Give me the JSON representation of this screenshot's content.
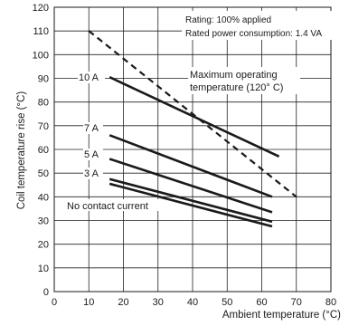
{
  "chart_data": {
    "type": "line",
    "xlabel": "Ambient temperature (°C)",
    "ylabel": "Coil temperature rise (°C)",
    "xlim": [
      0,
      80
    ],
    "ylim": [
      0,
      120
    ],
    "xticks": [
      0,
      10,
      20,
      30,
      40,
      50,
      60,
      70,
      80
    ],
    "yticks": [
      0,
      10,
      20,
      30,
      40,
      50,
      60,
      70,
      80,
      90,
      100,
      110,
      120
    ],
    "grid": true,
    "notes": [
      "Rating: 100% applied",
      "Rated power consumption: 1.4 VA"
    ],
    "max_label": [
      "Maximum operating",
      "temperature (120° C)"
    ],
    "series": [
      {
        "name": "10 A",
        "x": [
          16,
          65
        ],
        "y": [
          90.5,
          57
        ],
        "style": "solid"
      },
      {
        "name": "7 A",
        "x": [
          16,
          63
        ],
        "y": [
          66,
          40
        ],
        "style": "solid"
      },
      {
        "name": "5 A",
        "x": [
          16,
          63
        ],
        "y": [
          56,
          33.5
        ],
        "style": "solid"
      },
      {
        "name": "3 A",
        "x": [
          16,
          63
        ],
        "y": [
          47.5,
          29.5
        ],
        "style": "solid"
      },
      {
        "name": "No contact current",
        "x": [
          16,
          63
        ],
        "y": [
          45.5,
          27.5
        ],
        "style": "solid"
      },
      {
        "name": "Maximum operating temperature (120° C)",
        "x": [
          10,
          70
        ],
        "y": [
          110,
          40
        ],
        "style": "dashed"
      }
    ]
  }
}
